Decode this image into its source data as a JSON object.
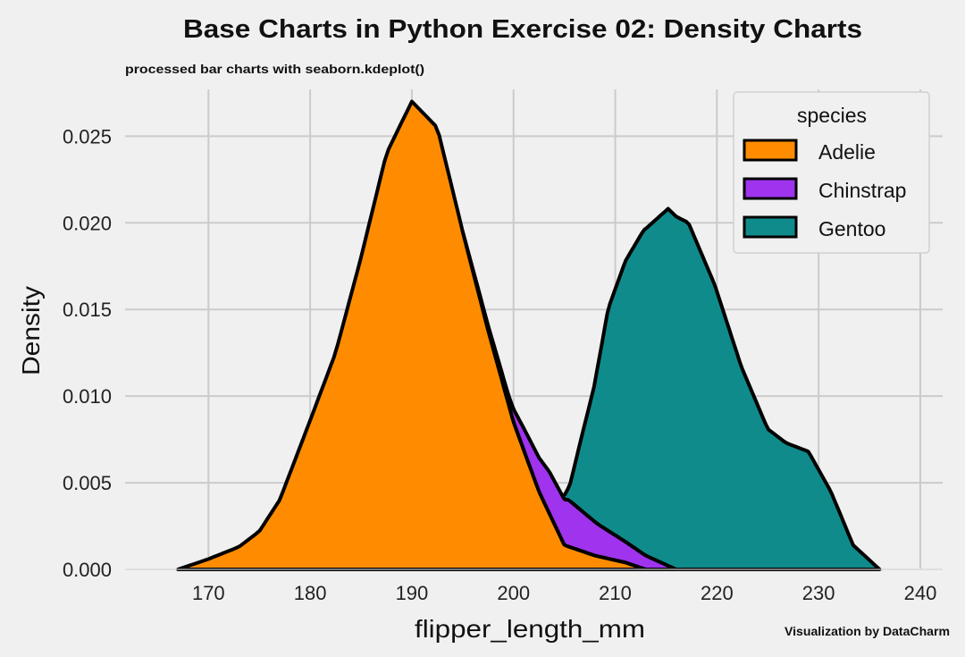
{
  "chart_data": {
    "type": "area",
    "kind": "kde-stacked",
    "title": "Base Charts in Python Exercise 02: Density Charts",
    "subtitle": "processed bar charts with seaborn.kdeplot()",
    "caption": "Visualization by DataCharm",
    "xlabel": "flipper_length_mm",
    "ylabel": "Density",
    "xlim": [
      161.8,
      242.2
    ],
    "ylim": [
      0,
      0.0277
    ],
    "xticks": [
      170,
      180,
      190,
      200,
      210,
      220,
      230,
      240
    ],
    "yticks": [
      "0.000",
      "0.005",
      "0.010",
      "0.015",
      "0.020",
      "0.025"
    ],
    "grid": true,
    "legend": {
      "title": "species",
      "placement": "top-right"
    },
    "series": [
      {
        "name": "Adelie",
        "color": "#ff8c00",
        "points": [
          [
            167,
            0
          ],
          [
            170,
            0.0006
          ],
          [
            173,
            0.0013
          ],
          [
            175,
            0.0022
          ],
          [
            177,
            0.004
          ],
          [
            180,
            0.0086
          ],
          [
            182.5,
            0.0125
          ],
          [
            185,
            0.018
          ],
          [
            187.5,
            0.024
          ],
          [
            190,
            0.027
          ],
          [
            192.5,
            0.0255
          ],
          [
            195,
            0.0195
          ],
          [
            197.5,
            0.0138
          ],
          [
            200,
            0.0085
          ],
          [
            202.5,
            0.0045
          ],
          [
            205,
            0.0014
          ],
          [
            208,
            0.0008
          ],
          [
            211,
            0.0004
          ],
          [
            213,
            0
          ]
        ]
      },
      {
        "name": "Chinstrap",
        "color": "#9f33ee",
        "points": [
          [
            195,
            0
          ],
          [
            199.5,
            0.0005
          ],
          [
            201.3,
            0.0014
          ],
          [
            203.5,
            0.0024
          ],
          [
            205.4,
            0.0027
          ],
          [
            208.5,
            0.0018
          ],
          [
            211,
            0.0012
          ],
          [
            213,
            0.0008
          ],
          [
            216,
            0
          ]
        ]
      },
      {
        "name": "Gentoo",
        "color": "#108b8b",
        "points": [
          [
            204.8,
            0
          ],
          [
            205.5,
            0.0008
          ],
          [
            206.6,
            0.004
          ],
          [
            207.9,
            0.0077
          ],
          [
            209.3,
            0.0128
          ],
          [
            211,
            0.0162
          ],
          [
            212.8,
            0.0187
          ],
          [
            215.2,
            0.0206
          ],
          [
            217.2,
            0.02
          ],
          [
            219.8,
            0.0164
          ],
          [
            222.4,
            0.0117
          ],
          [
            225,
            0.0081
          ],
          [
            226.8,
            0.0073
          ],
          [
            229,
            0.0068
          ],
          [
            231.2,
            0.0045
          ],
          [
            233.4,
            0.0014
          ],
          [
            236,
            0
          ]
        ]
      }
    ]
  }
}
